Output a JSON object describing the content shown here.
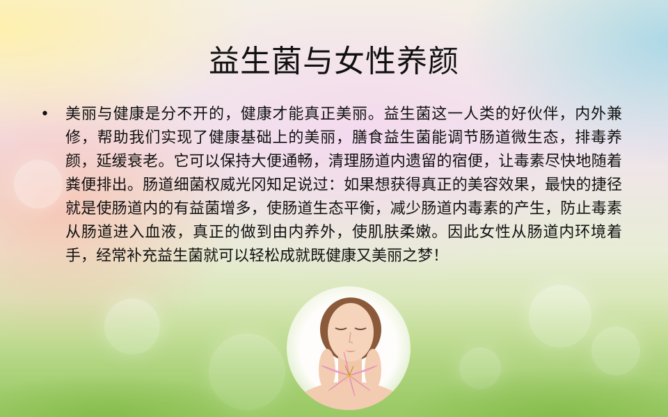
{
  "slide": {
    "title": "益生菌与女性养颜",
    "bullet_symbol": "•",
    "paragraph": "美丽与健康是分不开的，健康才能真正美丽。益生菌这一人类的好伙伴，内外兼修，帮助我们实现了健康基础上的美丽，膳食益生菌能调节肠道微生态，排毒养颜，延缓衰老。它可以保持大便通畅，清理肠道内遗留的宿便，让毒素尽快地随着粪便排出。肠道细菌权威光冈知足说过：如果想获得真正的美容效果，最快的捷径就是使肠道内的有益菌增多，使肠道生态平衡，减少肠道内毒素的产生，防止毒素从肠道进入血液，真正的做到由内养外，使肌肤柔嫩。因此女性从肠道内环境着手，经常补充益生菌就可以轻松成就既健康又美丽之梦！"
  },
  "images": {
    "portrait": "woman-face-with-lily-flower-illustration",
    "background": "pastel-bokeh-grass-background"
  }
}
